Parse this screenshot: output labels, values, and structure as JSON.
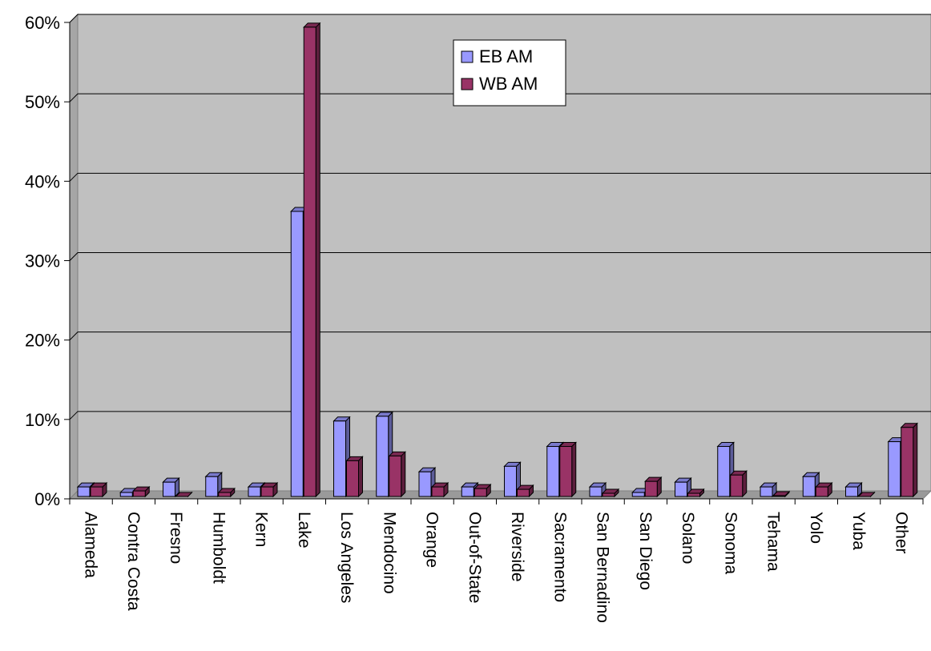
{
  "chart_data": {
    "type": "bar",
    "title": "",
    "xlabel": "",
    "ylabel": "",
    "ylim": [
      0,
      60
    ],
    "yticks": [
      "0%",
      "10%",
      "20%",
      "30%",
      "40%",
      "50%",
      "60%"
    ],
    "grid": true,
    "legend_position": "top-center",
    "categories": [
      "Alameda",
      "Contra Costa",
      "Fresno",
      "Humboldt",
      "Kern",
      "Lake",
      "Los Angeles",
      "Mendocino",
      "Orange",
      "Out-of-State",
      "Riverside",
      "Sacramento",
      "San Bernadino",
      "San Diego",
      "Solano",
      "Sonoma",
      "Tehama",
      "Yolo",
      "Yuba",
      "Other"
    ],
    "series": [
      {
        "name": "EB AM",
        "color": "#9999ff",
        "values": [
          1.3,
          0.6,
          1.9,
          2.6,
          1.3,
          36.0,
          9.6,
          10.2,
          3.2,
          1.3,
          3.9,
          6.4,
          1.3,
          0.6,
          1.9,
          6.4,
          1.3,
          2.6,
          1.3,
          7.0
        ]
      },
      {
        "name": "WB AM",
        "color": "#993366",
        "values": [
          1.3,
          0.8,
          0.1,
          0.6,
          1.3,
          59.2,
          4.6,
          5.2,
          1.3,
          1.1,
          1.0,
          6.4,
          0.5,
          2.0,
          0.5,
          2.8,
          0.2,
          1.3,
          0.1,
          8.8
        ]
      }
    ]
  }
}
